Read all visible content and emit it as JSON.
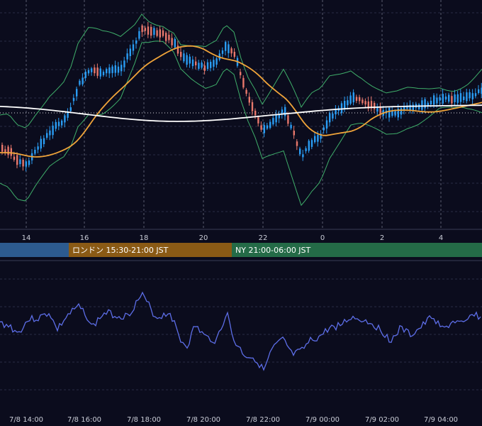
{
  "colors": {
    "background": "#0b0c1d",
    "grid": "#2a2d45",
    "vline": "#5a5d70",
    "candle_up": "#2a9df4",
    "candle_down": "#e8786c",
    "bollinger": "#3fae6a",
    "ma_short": "#f0a43a",
    "ma_long": "#ffffff",
    "oscillator": "#5d6ee8",
    "session_tokyo": "#2d5b8f",
    "session_london": "#8a5a15",
    "session_ny": "#246b47"
  },
  "sessions": [
    {
      "label": "",
      "name": "tokyo"
    },
    {
      "label": "ロンドン 15:30-21:00 JST",
      "name": "london"
    },
    {
      "label": "NY 21:00-06:00 JST",
      "name": "ny"
    }
  ],
  "chart_data": [
    {
      "type": "candlestick",
      "title": "",
      "x_tick_labels": [
        "14",
        "16",
        "18",
        "20",
        "22",
        "0",
        "2",
        "4"
      ],
      "x_range_hours": [
        13,
        29.5
      ],
      "reference_line": "dotted horizontal",
      "overlays": [
        "Bollinger bands",
        "moving average (orange)",
        "moving average (white)"
      ],
      "grid": true
    },
    {
      "type": "line",
      "title": "",
      "x_tick_labels": [
        "7/8 14:00",
        "7/8 16:00",
        "7/8 18:00",
        "7/8 20:00",
        "7/8 22:00",
        "7/9 00:00",
        "7/9 02:00",
        "7/9 04:00"
      ],
      "series": [
        {
          "name": ""
        }
      ],
      "grid": true
    }
  ]
}
